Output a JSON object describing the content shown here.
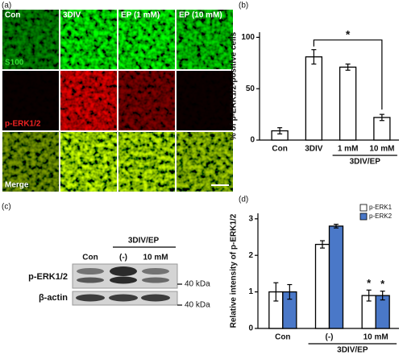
{
  "figure": {
    "panel_labels": [
      "(a)",
      "(b)",
      "(c)",
      "(d)"
    ]
  },
  "micrograph": {
    "columns": [
      "Con",
      "3DIV",
      "EP (1 mM)",
      "EP (10 mM)"
    ],
    "rows": [
      "S100",
      "p-ERK1/2",
      "Merge"
    ]
  },
  "blot": {
    "group_label": "3DIV/EP",
    "lanes": [
      "Con",
      "(-)",
      "10 mM"
    ],
    "bands": [
      "p-ERK1/2",
      "β-actin"
    ],
    "markers": [
      "40 kDa",
      "40 kDa"
    ]
  },
  "chart_data": [
    {
      "type": "bar",
      "ylabel": "% of p-ERK1/2-positive cells",
      "categories": [
        "Con",
        "3DIV",
        "1 mM",
        "10 mM"
      ],
      "values": [
        9,
        81,
        71,
        22
      ],
      "errors": [
        3,
        7,
        3,
        3
      ],
      "color": "#ffffff",
      "ylim": [
        0,
        105
      ],
      "yticks": [
        0,
        50,
        100
      ],
      "group_label": "3DIV/EP",
      "annotations": [
        "*"
      ]
    },
    {
      "type": "bar",
      "ylabel": "Relative intensity of p-ERK1/2",
      "categories": [
        "Con",
        "(-)",
        "10 mM"
      ],
      "series": [
        {
          "name": "p-ERK1",
          "color": "#ffffff",
          "values": [
            1.0,
            2.3,
            0.9
          ],
          "errors": [
            0.25,
            0.1,
            0.15
          ]
        },
        {
          "name": "p-ERK2",
          "color": "#4a78c8",
          "values": [
            1.0,
            2.8,
            0.9
          ],
          "errors": [
            0.2,
            0.05,
            0.12
          ]
        }
      ],
      "ylim": [
        0,
        3.15
      ],
      "yticks": [
        0,
        1,
        2,
        3
      ],
      "group_label": "3DIV/EP",
      "annotations": [
        "*",
        "*"
      ],
      "legend": "upper right"
    }
  ]
}
